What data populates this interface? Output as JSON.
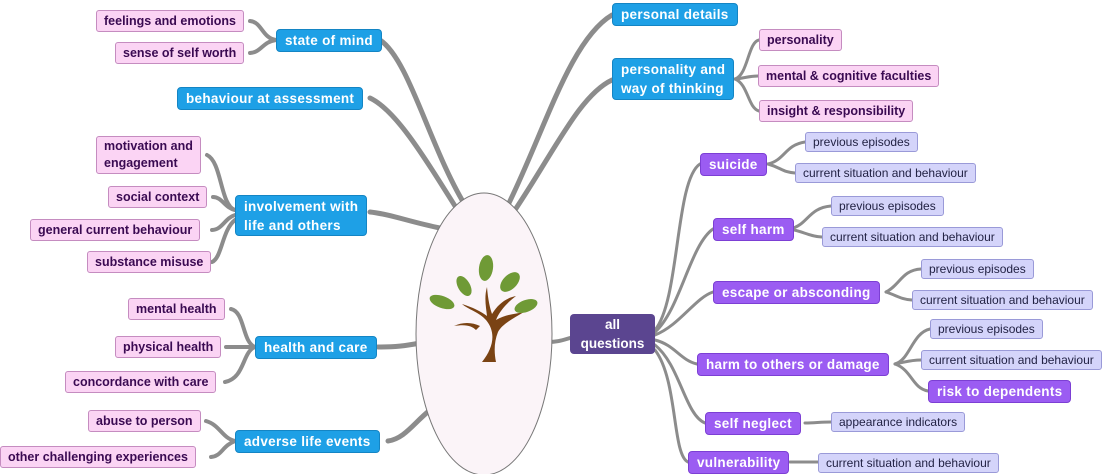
{
  "root": {
    "label_line1": "all",
    "label_line2": "questions"
  },
  "left_branches": {
    "state_of_mind": {
      "label": "state of mind",
      "children": [
        "feelings and emotions",
        "sense of self worth"
      ]
    },
    "behaviour_at_assessment": {
      "label": "behaviour at assessment"
    },
    "involvement": {
      "label_line1": "involvement with",
      "label_line2": "life and others",
      "children": [
        "motivation and",
        "engagement",
        "social context",
        "general current behaviour",
        "substance misuse"
      ]
    },
    "health_and_care": {
      "label": "health and care",
      "children": [
        "mental health",
        "physical health",
        "concordance with care"
      ]
    },
    "adverse_life_events": {
      "label": "adverse life events",
      "children": [
        "abuse to person",
        "other challenging experiences"
      ]
    }
  },
  "top_branches": {
    "personal_details": {
      "label": "personal details"
    },
    "personality_thinking": {
      "label_line1": "personality and",
      "label_line2": "way of thinking",
      "children": [
        "personality",
        "mental & cognitive faculties",
        "insight & responsibility"
      ]
    }
  },
  "right_branches": {
    "suicide": {
      "label": "suicide",
      "children": [
        "previous episodes",
        "current situation and behaviour"
      ]
    },
    "self_harm": {
      "label": "self harm",
      "children": [
        "previous episodes",
        "current situation and behaviour"
      ]
    },
    "escape": {
      "label": "escape or absconding",
      "children": [
        "previous episodes",
        "current situation and behaviour"
      ]
    },
    "harm_others": {
      "label": "harm to others or damage",
      "children": [
        "previous episodes",
        "current situation and behaviour",
        "risk to dependents"
      ]
    },
    "self_neglect": {
      "label": "self neglect",
      "children": [
        "appearance indicators"
      ]
    },
    "vulnerability": {
      "label": "vulnerability",
      "children": [
        "current situation and behaviour"
      ]
    }
  },
  "colors": {
    "main_branch": "#1ea0e6",
    "sub_topic": "#fbd4f4",
    "risk_branch": "#9b5cf2",
    "risk_detail": "#d4d4fa",
    "root": "#5b4590",
    "connector": "#8c8c8c"
  },
  "icons": {
    "center": "tree-icon"
  }
}
